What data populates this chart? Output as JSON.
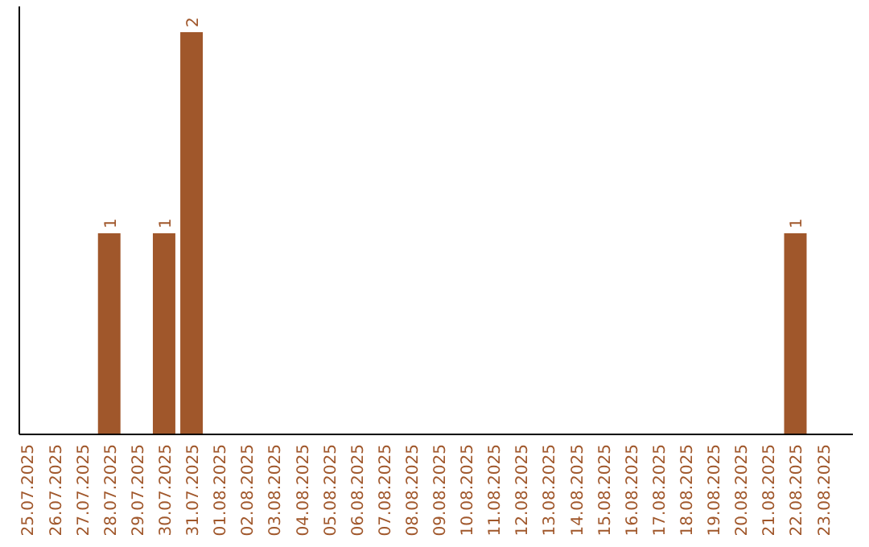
{
  "chart_data": {
    "type": "bar",
    "categories": [
      "25.07.2025",
      "26.07.2025",
      "27.07.2025",
      "28.07.2025",
      "29.07.2025",
      "30.07.2025",
      "31.07.2025",
      "01.08.2025",
      "02.08.2025",
      "03.08.2025",
      "04.08.2025",
      "05.08.2025",
      "06.08.2025",
      "07.08.2025",
      "08.08.2025",
      "09.08.2025",
      "10.08.2025",
      "11.08.2025",
      "12.08.2025",
      "13.08.2025",
      "14.08.2025",
      "15.08.2025",
      "16.08.2025",
      "17.08.2025",
      "18.08.2025",
      "19.08.2025",
      "20.08.2025",
      "21.08.2025",
      "22.08.2025",
      "23.08.2025"
    ],
    "values": [
      0,
      0,
      0,
      1,
      0,
      1,
      2,
      0,
      0,
      0,
      0,
      0,
      0,
      0,
      0,
      0,
      0,
      0,
      0,
      0,
      0,
      0,
      0,
      0,
      0,
      0,
      0,
      0,
      1,
      0
    ],
    "value_labels": [
      null,
      null,
      null,
      "1",
      null,
      "1",
      "2",
      null,
      null,
      null,
      null,
      null,
      null,
      null,
      null,
      null,
      null,
      null,
      null,
      null,
      null,
      null,
      null,
      null,
      null,
      null,
      null,
      null,
      "1",
      null
    ],
    "color": "#a0572b"
  }
}
